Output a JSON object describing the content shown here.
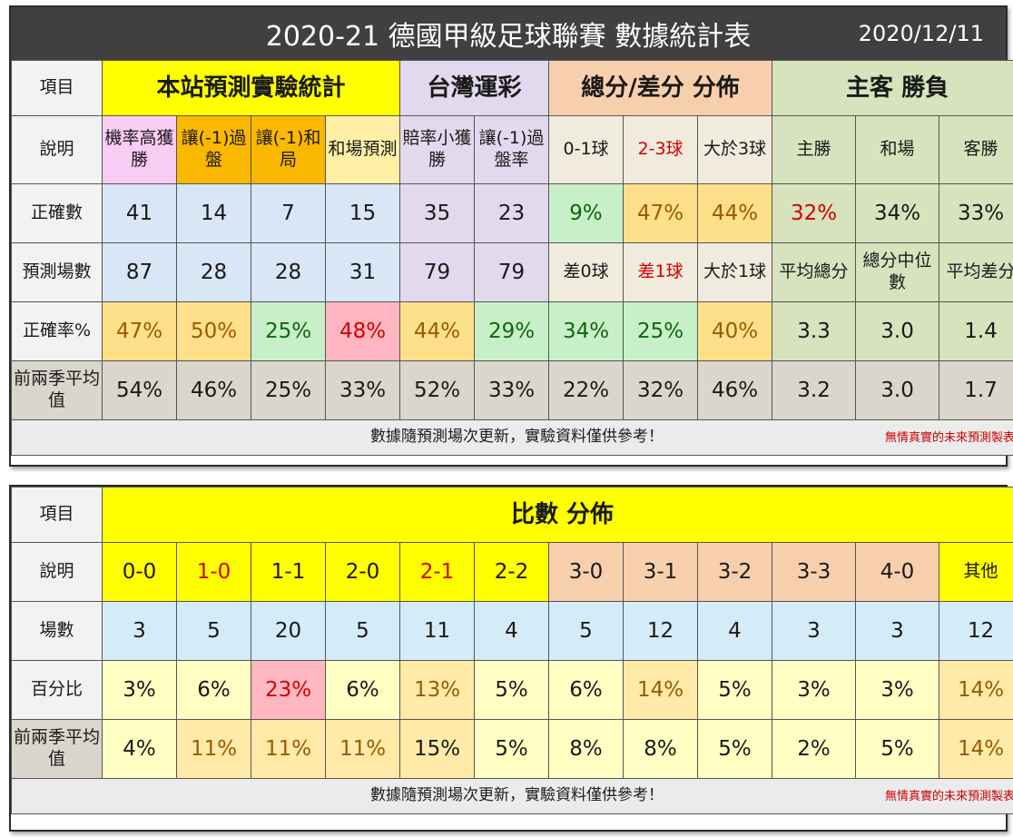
{
  "top": {
    "title": "2020-21 德國甲級足球聯賽  數據統計表",
    "date": "2020/12/11",
    "headers": {
      "item": "項目",
      "site": "本站預測實驗統計",
      "lottery": "台灣運彩",
      "dist": "總分/差分 分佈",
      "winloss": "主客 勝負"
    },
    "desc_label": "說明",
    "desc": [
      "機率高獲勝",
      "讓(-1)過盤",
      "讓(-1)和局",
      "和場預測",
      "賠率小獲勝",
      "讓(-1)過盤率",
      "0-1球",
      "2-3球",
      "大於3球",
      "主勝",
      "和場",
      "客勝"
    ],
    "correct_label": "正確數",
    "correct": [
      "41",
      "14",
      "7",
      "15",
      "35",
      "23",
      "9%",
      "47%",
      "44%",
      "32%",
      "34%",
      "33%"
    ],
    "games_label": "預測場數",
    "games": [
      "87",
      "28",
      "28",
      "31",
      "79",
      "79",
      "差0球",
      "差1球",
      "大於1球",
      "平均總分",
      "總分中位數",
      "平均差分"
    ],
    "rate_label": "正確率%",
    "rate": [
      "47%",
      "50%",
      "25%",
      "48%",
      "44%",
      "29%",
      "34%",
      "25%",
      "40%",
      "3.3",
      "3.0",
      "1.4"
    ],
    "prev_label": "前兩季平均值",
    "prev": [
      "54%",
      "46%",
      "25%",
      "33%",
      "52%",
      "33%",
      "22%",
      "32%",
      "46%",
      "3.2",
      "3.0",
      "1.7"
    ],
    "footer": "數據隨預測場次更新，實驗資料僅供參考！",
    "footer_note": "無情真實的未來預測製表"
  },
  "bottom": {
    "item": "項目",
    "header": "比數 分佈",
    "desc_label": "說明",
    "scores": [
      "0-0",
      "1-0",
      "1-1",
      "2-0",
      "2-1",
      "2-2",
      "3-0",
      "3-1",
      "3-2",
      "3-3",
      "4-0",
      "其他"
    ],
    "count_label": "場數",
    "counts": [
      "3",
      "5",
      "20",
      "5",
      "11",
      "4",
      "5",
      "12",
      "4",
      "3",
      "3",
      "12"
    ],
    "pct_label": "百分比",
    "pcts": [
      "3%",
      "6%",
      "23%",
      "6%",
      "13%",
      "5%",
      "6%",
      "14%",
      "5%",
      "3%",
      "3%",
      "14%"
    ],
    "prev_label": "前兩季平均值",
    "prev": [
      "4%",
      "11%",
      "11%",
      "11%",
      "15%",
      "5%",
      "8%",
      "8%",
      "5%",
      "2%",
      "5%",
      "14%"
    ],
    "footer": "數據隨預測場次更新，實驗資料僅供參考！",
    "footer_note": "無情真實的未來預測製表"
  }
}
